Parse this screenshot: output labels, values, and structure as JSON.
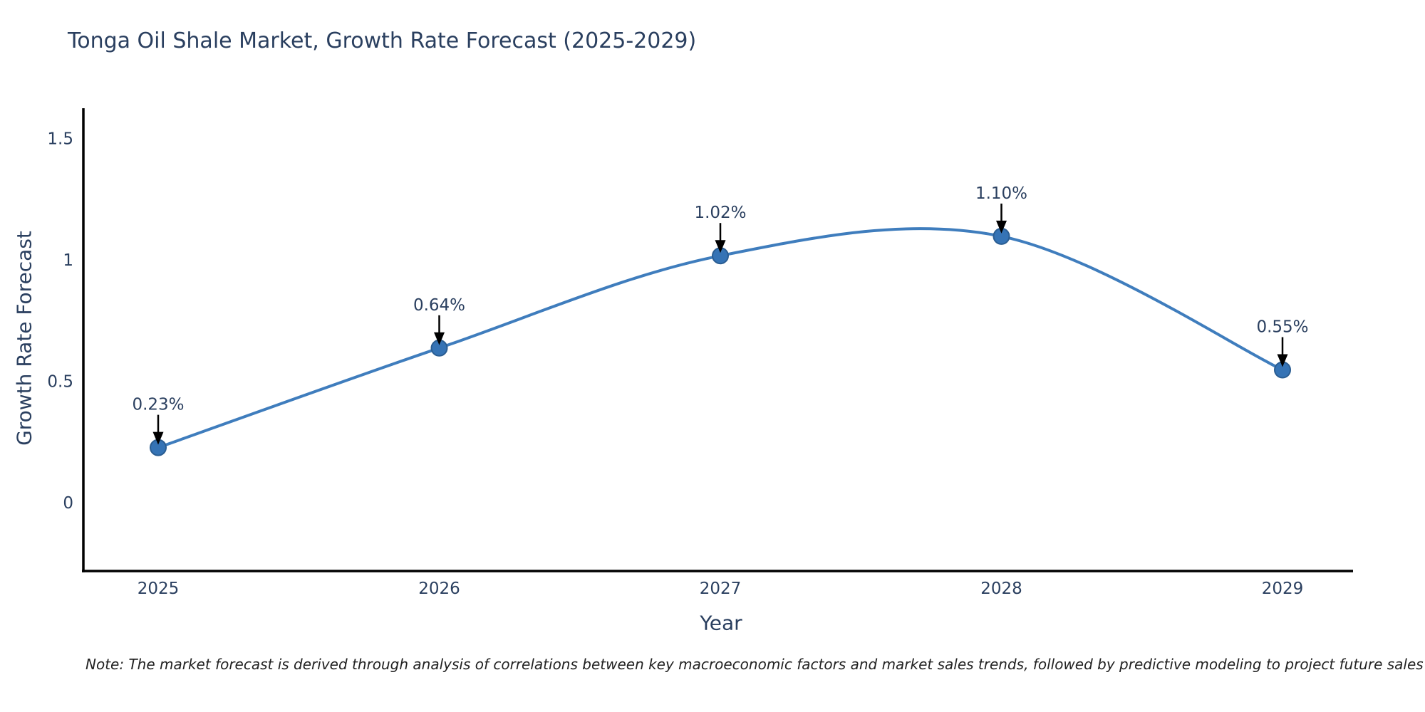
{
  "chart_data": {
    "type": "line",
    "title": "Tonga Oil Shale Market, Growth Rate Forecast (2025-2029)",
    "xlabel": "Year",
    "ylabel": "Growth Rate Forecast",
    "categories": [
      "2025",
      "2026",
      "2027",
      "2028",
      "2029"
    ],
    "values": [
      0.23,
      0.64,
      1.02,
      1.1,
      0.55
    ],
    "data_labels": [
      "0.23%",
      "0.64%",
      "1.02%",
      "1.10%",
      "0.55%"
    ],
    "yticks": [
      {
        "value": 0,
        "label": "0"
      },
      {
        "value": 0.5,
        "label": "0.5"
      },
      {
        "value": 1,
        "label": "1"
      },
      {
        "value": 1.5,
        "label": "1.5"
      }
    ],
    "ylim": [
      -0.3,
      1.63
    ],
    "line_shape": "spline",
    "grid": false,
    "legend_position": "none",
    "annotation_style": "arrow-down-to-point",
    "colors": {
      "line": "#3f7dbd",
      "marker_fill": "#3573b5",
      "marker_stroke": "#2a5d92",
      "axis": "#000000",
      "text": "#2a3f5f",
      "annotation_arrow": "#000000"
    }
  },
  "note": {
    "text": "Note: The market forecast is derived through analysis of correlations between key macroeconomic factors and market sales trends, followed by predictive modeling to project future sales"
  }
}
